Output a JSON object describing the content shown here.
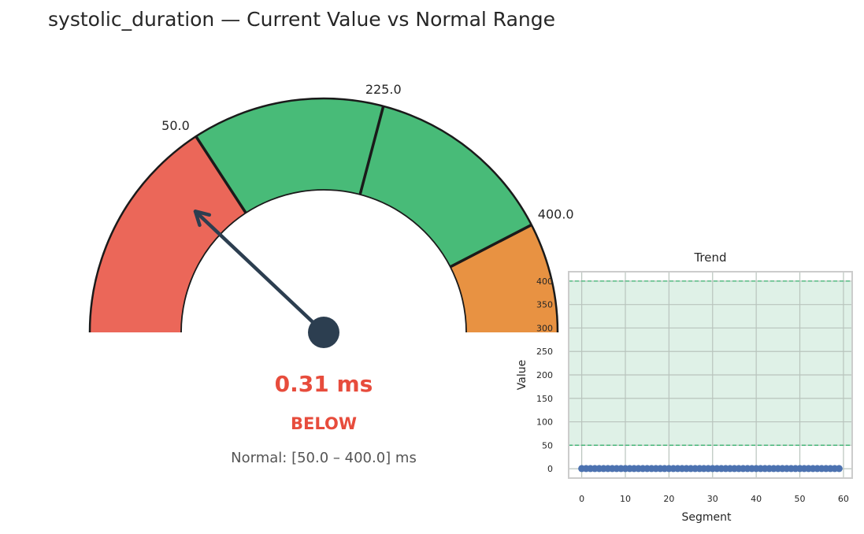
{
  "title": "systolic_duration — Current Value vs Normal Range",
  "colors": {
    "low": "#eb6759",
    "normal": "#48bb78",
    "high": "#e89242",
    "needle": "#2c3e50",
    "status": "#e74c3c",
    "normal_text": "#555555",
    "trend_band": "#dff1e7",
    "trend_line": "#3cb371",
    "trend_points": "#4c72b0"
  },
  "gauge": {
    "value_text": "0.31 ms",
    "status": "BELOW",
    "range_text": "Normal: [50.0 – 400.0] ms",
    "tick_labels": [
      "50.0",
      "225.0",
      "400.0"
    ]
  },
  "chart_data": [
    {
      "type": "gauge",
      "value": 0.31,
      "unit": "ms",
      "min": -158,
      "max": 500,
      "normal_low": 50.0,
      "normal_mid": 225.0,
      "normal_high": 400.0,
      "status": "BELOW"
    },
    {
      "type": "scatter",
      "title": "Trend",
      "xlabel": "Segment",
      "ylabel": "Value",
      "xlim": [
        -3,
        62
      ],
      "ylim": [
        -20,
        420
      ],
      "xticks": [
        0,
        10,
        20,
        30,
        40,
        50,
        60
      ],
      "yticks": [
        0,
        50,
        100,
        150,
        200,
        250,
        300,
        350,
        400
      ],
      "normal_band": [
        50,
        400
      ],
      "grid": true,
      "x": [
        0,
        1,
        2,
        3,
        4,
        5,
        6,
        7,
        8,
        9,
        10,
        11,
        12,
        13,
        14,
        15,
        16,
        17,
        18,
        19,
        20,
        21,
        22,
        23,
        24,
        25,
        26,
        27,
        28,
        29,
        30,
        31,
        32,
        33,
        34,
        35,
        36,
        37,
        38,
        39,
        40,
        41,
        42,
        43,
        44,
        45,
        46,
        47,
        48,
        49,
        50,
        51,
        52,
        53,
        54,
        55,
        56,
        57,
        58,
        59
      ],
      "y": [
        0.31,
        0.31,
        0.31,
        0.31,
        0.31,
        0.31,
        0.31,
        0.31,
        0.31,
        0.31,
        0.31,
        0.31,
        0.31,
        0.31,
        0.31,
        0.31,
        0.31,
        0.31,
        0.31,
        0.31,
        0.31,
        0.31,
        0.31,
        0.31,
        0.31,
        0.31,
        0.31,
        0.31,
        0.31,
        0.31,
        0.31,
        0.31,
        0.31,
        0.31,
        0.31,
        0.31,
        0.31,
        0.31,
        0.31,
        0.31,
        0.31,
        0.31,
        0.31,
        0.31,
        0.31,
        0.31,
        0.31,
        0.31,
        0.31,
        0.31,
        0.31,
        0.31,
        0.31,
        0.31,
        0.31,
        0.31,
        0.31,
        0.31,
        0.31,
        0.31
      ]
    }
  ]
}
